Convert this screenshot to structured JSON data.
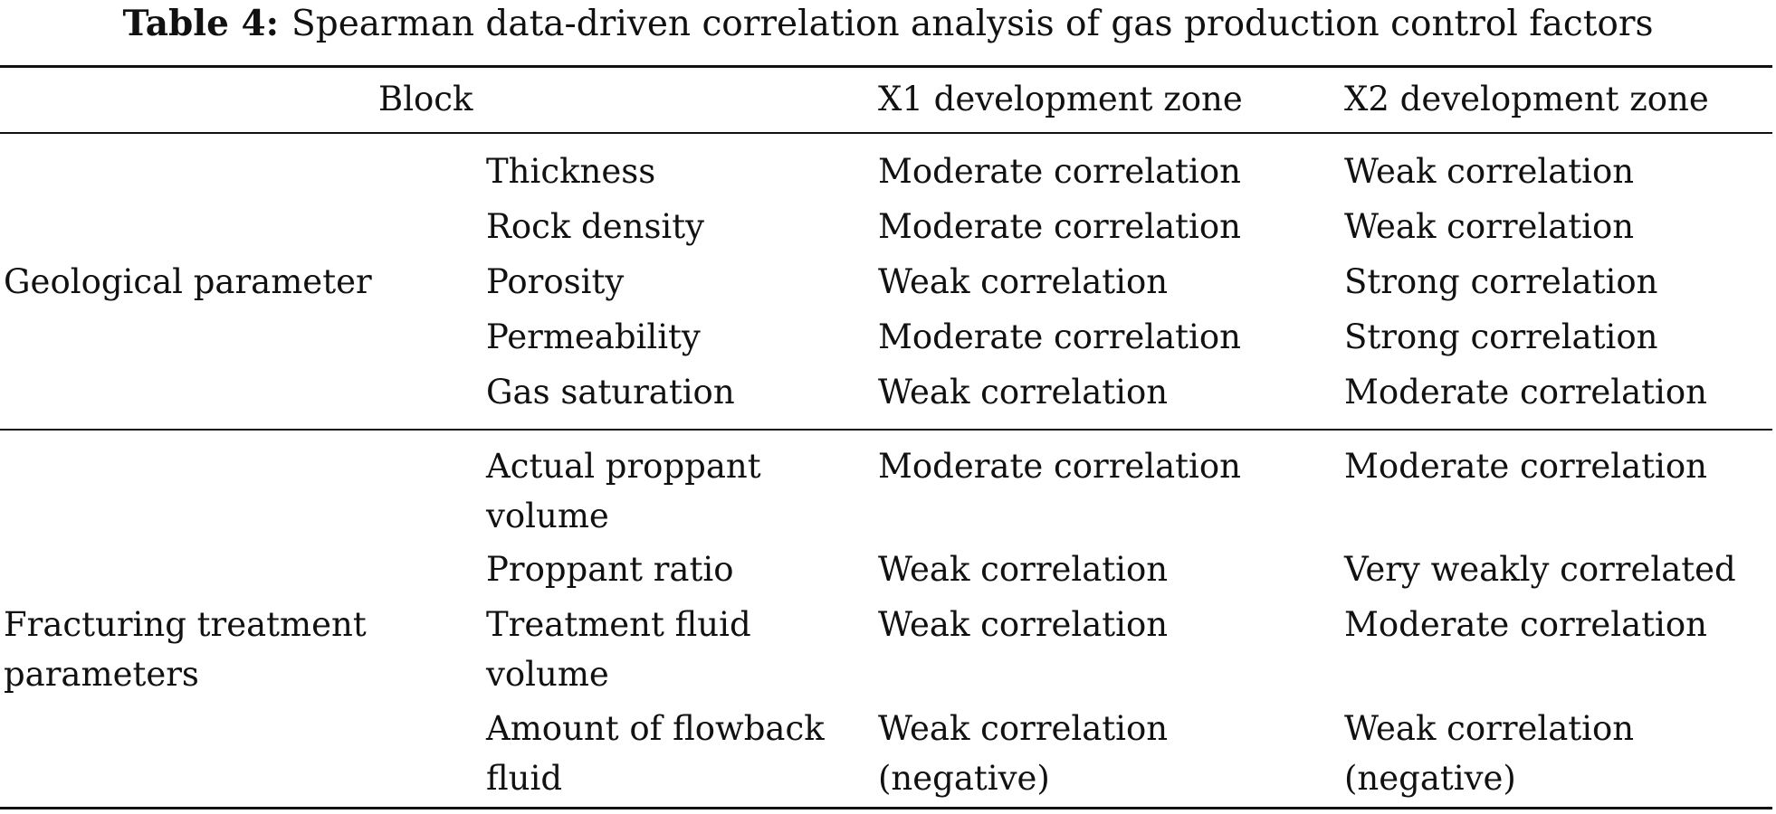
{
  "caption": {
    "label": "Table 4:",
    "text": "Spearman data-driven correlation analysis of gas production control factors"
  },
  "header": {
    "block": "Block",
    "x1": "X1 development zone",
    "x2": "X2 development zone"
  },
  "groups": [
    {
      "name": "Geological parameter",
      "rows": [
        {
          "factor": "Thickness",
          "x1": "Moderate correlation",
          "x2": "Weak correlation"
        },
        {
          "factor": "Rock density",
          "x1": "Moderate correlation",
          "x2": "Weak correlation"
        },
        {
          "factor": "Porosity",
          "x1": "Weak correlation",
          "x2": "Strong correlation"
        },
        {
          "factor": "Permeability",
          "x1": "Moderate correlation",
          "x2": "Strong correlation"
        },
        {
          "factor": "Gas saturation",
          "x1": "Weak correlation",
          "x2": "Moderate correlation"
        }
      ]
    },
    {
      "name": "Fracturing treatment parameters",
      "name_lines": [
        "Fracturing treatment",
        "parameters"
      ],
      "rows": [
        {
          "factor_lines": [
            "Actual proppant",
            "volume"
          ],
          "x1": "Moderate correlation",
          "x2": "Moderate correlation"
        },
        {
          "factor": "Proppant ratio",
          "x1": "Weak correlation",
          "x2": "Very weakly correlated"
        },
        {
          "factor_lines": [
            "Treatment fluid",
            "volume"
          ],
          "x1": "Weak correlation",
          "x2": "Moderate correlation"
        },
        {
          "factor_lines": [
            "Amount of flowback",
            "fluid"
          ],
          "x1_lines": [
            "Weak correlation",
            "(negative)"
          ],
          "x2_lines": [
            "Weak correlation",
            "(negative)"
          ]
        }
      ]
    }
  ]
}
